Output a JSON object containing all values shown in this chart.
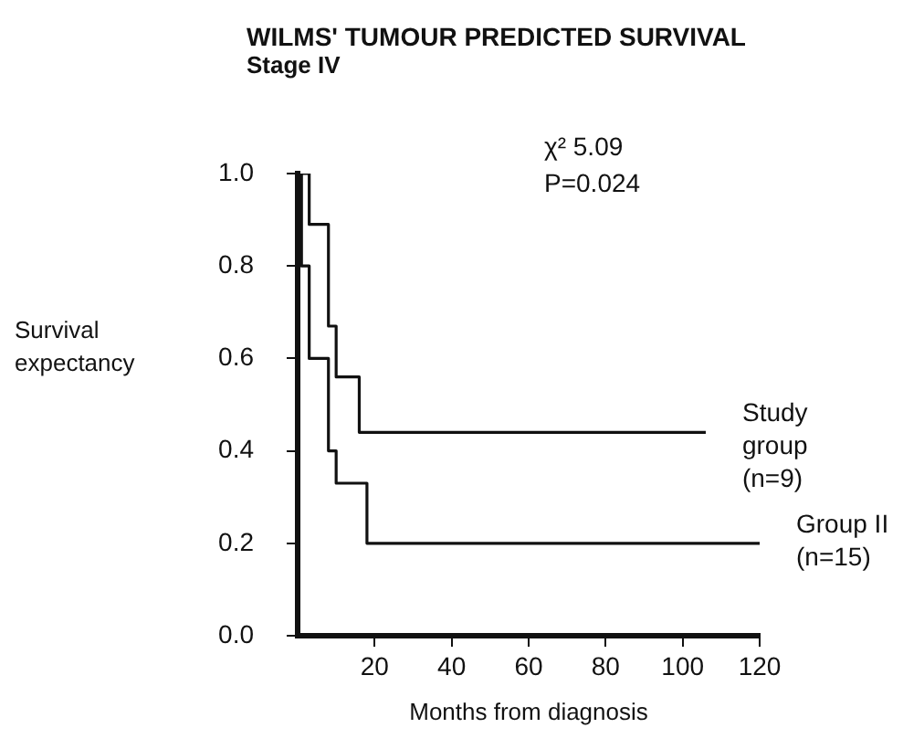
{
  "chart_data": {
    "type": "step",
    "title": "WILMS' TUMOUR PREDICTED SURVIVAL",
    "subtitle": "Stage IV",
    "xlabel": "Months from diagnosis",
    "ylabel": "Survival expectancy",
    "xlim": [
      0,
      120
    ],
    "xticks": [
      20,
      40,
      60,
      80,
      100,
      120
    ],
    "ylim": [
      0,
      1
    ],
    "yticks": [
      {
        "value": 0,
        "label": "0.0"
      },
      {
        "value": 0.2,
        "label": "0.2"
      },
      {
        "value": 0.4,
        "label": "0.4"
      },
      {
        "value": 0.6,
        "label": "0.6"
      },
      {
        "value": 0.8,
        "label": "0.8"
      },
      {
        "value": 1,
        "label": "1.0"
      }
    ],
    "series": [
      {
        "name": "Study group (n=9)",
        "color": "#111111",
        "x": [
          0,
          3,
          8,
          10,
          16,
          106
        ],
        "values": [
          1,
          0.89,
          0.67,
          0.56,
          0.44,
          0.44
        ]
      },
      {
        "name": "Group II (n=15)",
        "color": "#111111",
        "x": [
          0,
          1,
          3,
          8,
          10,
          18,
          120
        ],
        "values": [
          1,
          0.8,
          0.6,
          0.4,
          0.33,
          0.2,
          0.2
        ]
      }
    ],
    "annotations": [
      "χ² 5.09",
      "P=0.024"
    ],
    "grid": false,
    "legend": false,
    "marker": "none",
    "line_style": "solid"
  }
}
